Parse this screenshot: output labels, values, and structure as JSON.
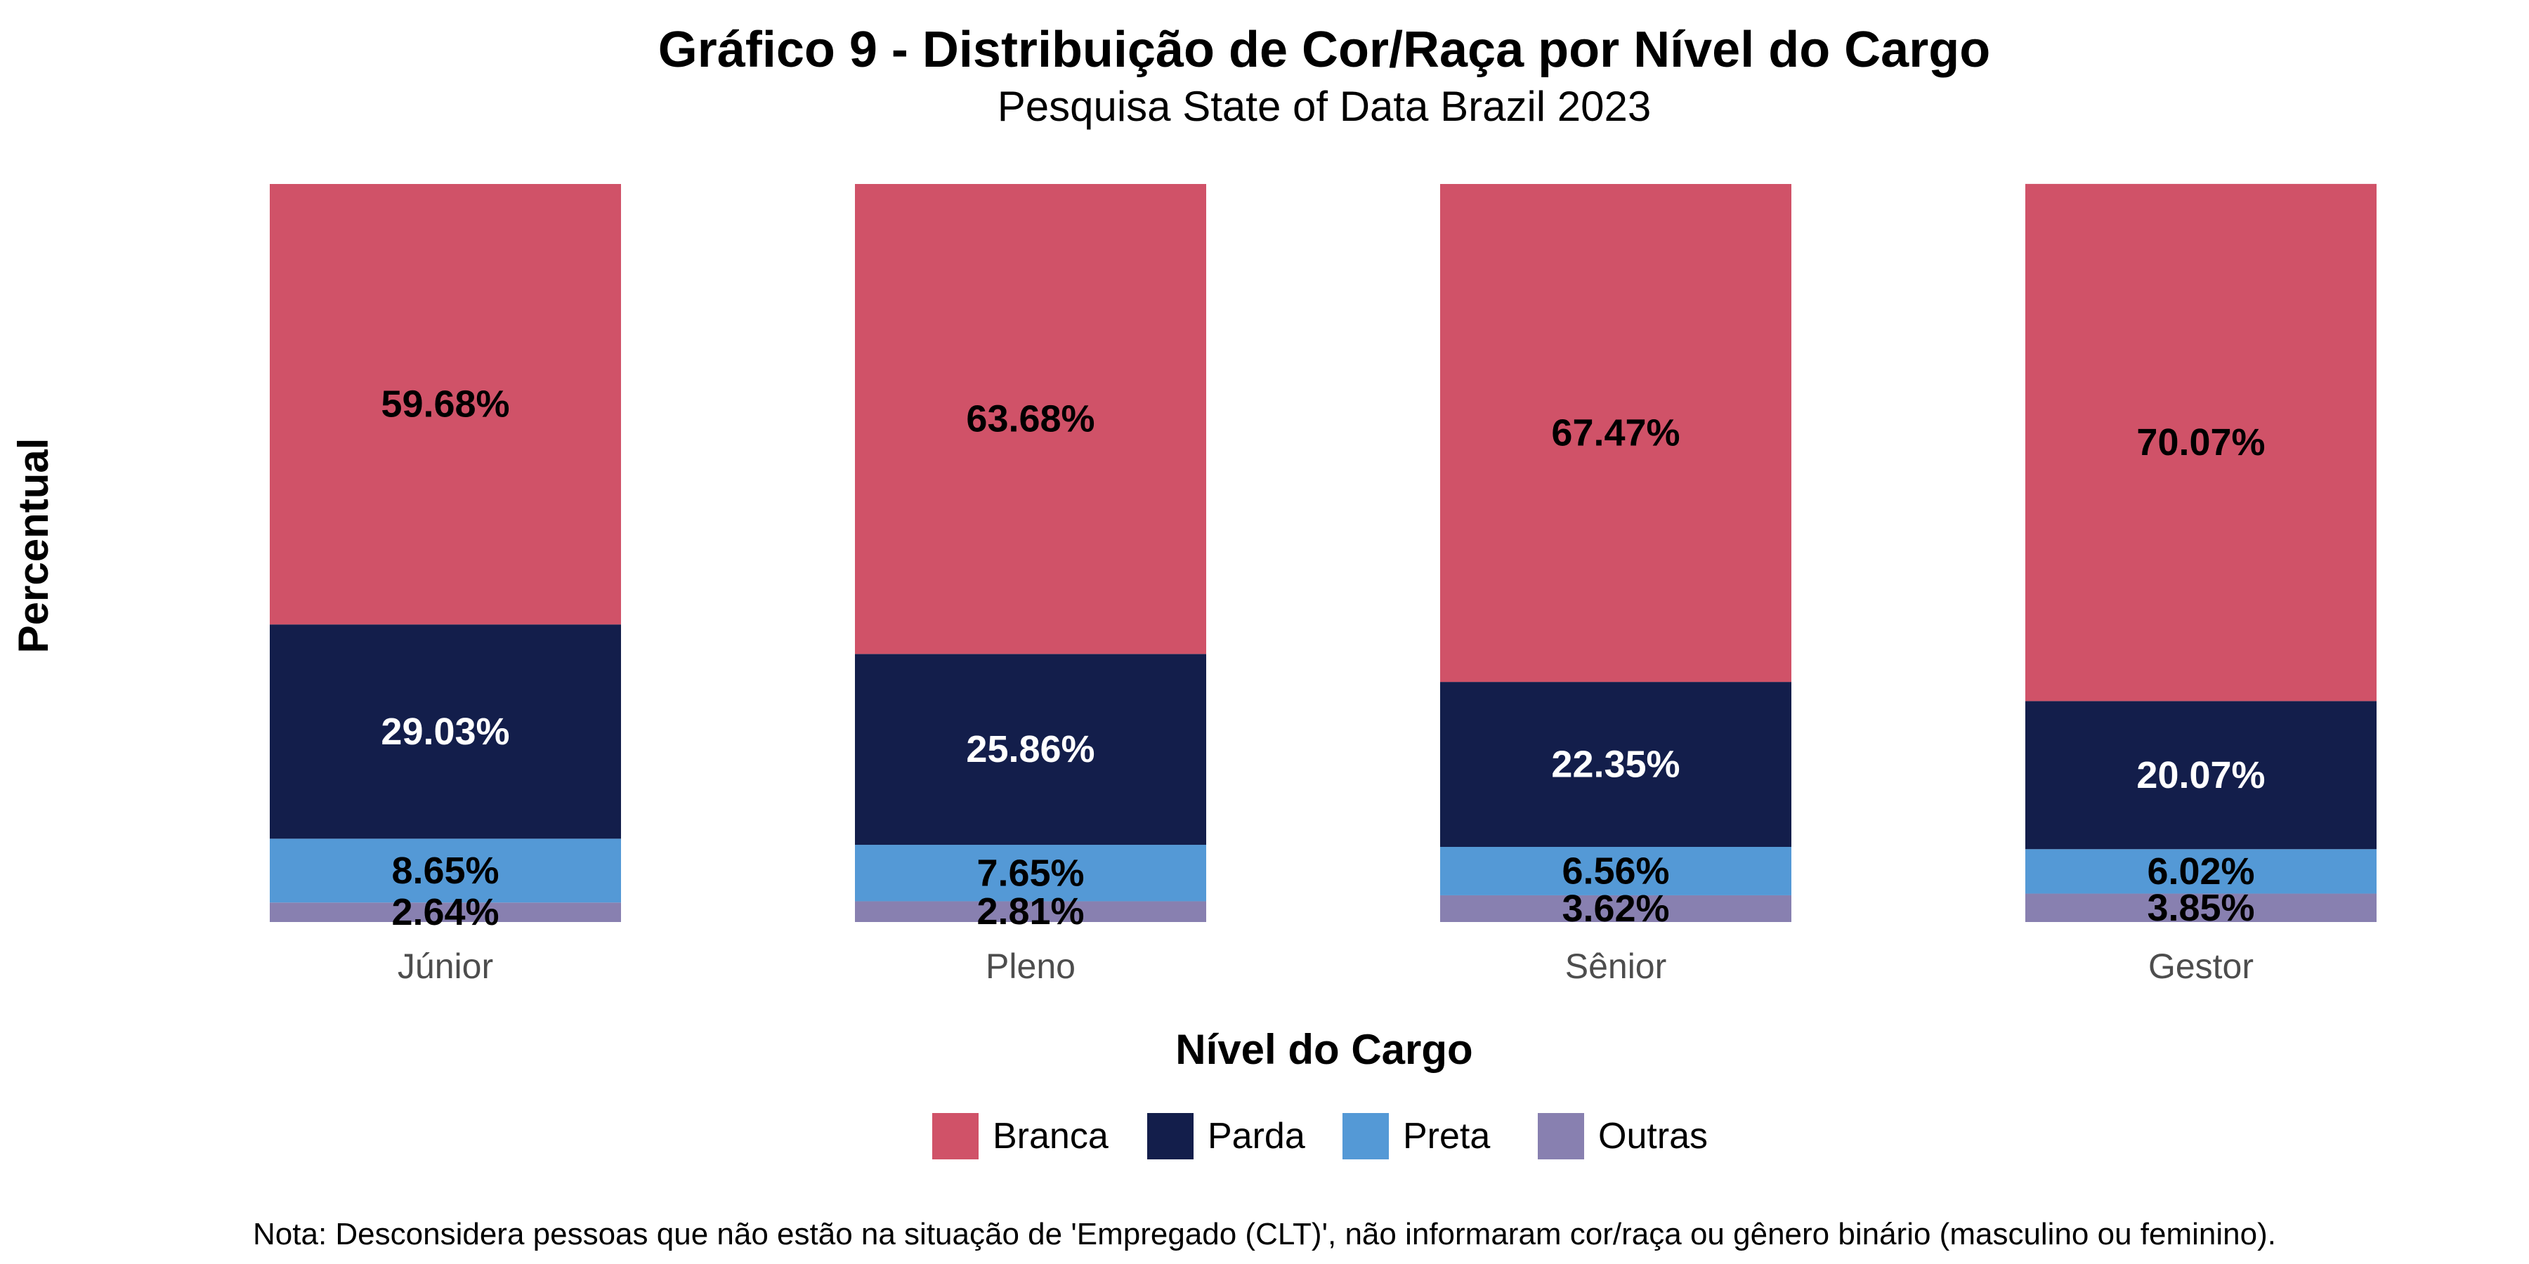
{
  "chart_data": {
    "type": "bar",
    "stacked": true,
    "title": "Gráfico 9 - Distribuição de Cor/Raça por Nível do Cargo",
    "subtitle": "Pesquisa State of Data Brazil 2023",
    "xlabel": "Nível do Cargo",
    "ylabel": "Percentual",
    "ylim": [
      0,
      100
    ],
    "grid": false,
    "legend_position": "bottom",
    "categories": [
      "Júnior",
      "Pleno",
      "Sênior",
      "Gestor"
    ],
    "series": [
      {
        "name": "Outras",
        "color": "#8880b0",
        "label_color": "#000000",
        "values": [
          2.64,
          2.81,
          3.62,
          3.85
        ],
        "labels": [
          "2.64%",
          "2.81%",
          "3.62%",
          "3.85%"
        ]
      },
      {
        "name": "Preta",
        "color": "#5499d6",
        "label_color": "#000000",
        "values": [
          8.65,
          7.65,
          6.56,
          6.02
        ],
        "labels": [
          "8.65%",
          "7.65%",
          "6.56%",
          "6.02%"
        ]
      },
      {
        "name": "Parda",
        "color": "#131e4b",
        "label_color": "#ffffff",
        "values": [
          29.03,
          25.86,
          22.35,
          20.07
        ],
        "labels": [
          "29.03%",
          "25.86%",
          "22.35%",
          "20.07%"
        ]
      },
      {
        "name": "Branca",
        "color": "#d05268",
        "label_color": "#000000",
        "values": [
          59.68,
          63.68,
          67.47,
          70.07
        ],
        "labels": [
          "59.68%",
          "63.68%",
          "67.47%",
          "70.07%"
        ]
      }
    ],
    "legend_order": [
      "Branca",
      "Parda",
      "Preta",
      "Outras"
    ],
    "note": "Nota: Desconsidera pessoas que não estão na situação de 'Empregado (CLT)', não informaram cor/raça ou gênero binário (masculino ou feminino)."
  }
}
